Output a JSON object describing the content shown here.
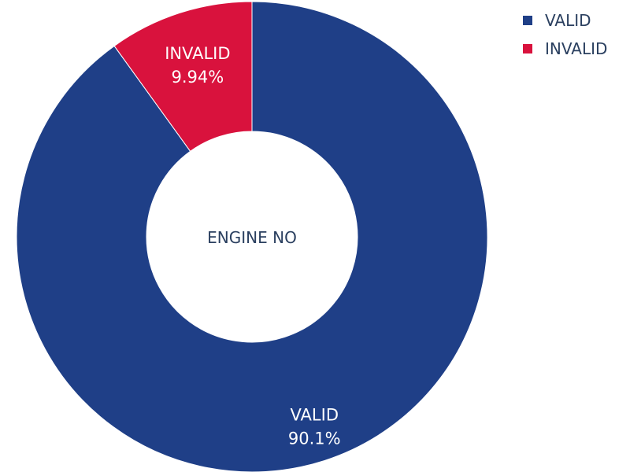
{
  "chart_data": {
    "type": "pie",
    "hole": true,
    "center_label": "ENGINE NO",
    "slices": [
      {
        "label": "VALID",
        "percent": 90.06,
        "display": "90.1%",
        "color": "#1f3f87"
      },
      {
        "label": "INVALID",
        "percent": 9.94,
        "display": "9.94%",
        "color": "#d9123d"
      }
    ],
    "legend": {
      "placement": "top-right",
      "items": [
        {
          "label": "VALID",
          "color": "#1f3f87"
        },
        {
          "label": "INVALID",
          "color": "#d9123d"
        }
      ]
    }
  }
}
